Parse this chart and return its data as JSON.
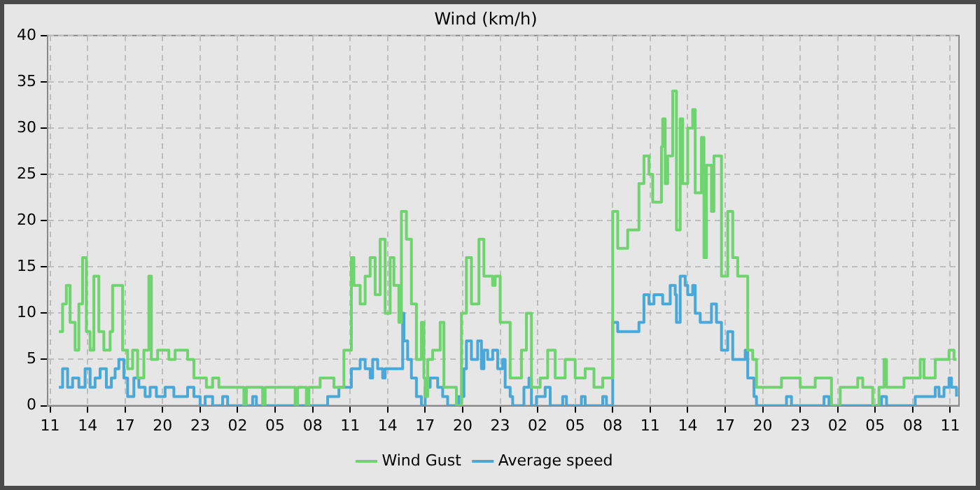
{
  "chart_data": {
    "type": "step",
    "title": "Wind (km/h)",
    "xlim": [
      "--01-01T10:48",
      "--01-04T11:42"
    ],
    "ylim": [
      0,
      40
    ],
    "xticks": [
      {
        "value": "--01-01T11:00",
        "label": "11"
      },
      {
        "value": "--01-01T14:00",
        "label": "14"
      },
      {
        "value": "--01-01T17:00",
        "label": "17"
      },
      {
        "value": "--01-01T20:00",
        "label": "20"
      },
      {
        "value": "--01-01T23:00",
        "label": "23"
      },
      {
        "value": "--01-02T02:00",
        "label": "02"
      },
      {
        "value": "--01-02T05:00",
        "label": "05"
      },
      {
        "value": "--01-02T08:00",
        "label": "08"
      },
      {
        "value": "--01-02T11:00",
        "label": "11"
      },
      {
        "value": "--01-02T14:00",
        "label": "14"
      },
      {
        "value": "--01-02T17:00",
        "label": "17"
      },
      {
        "value": "--01-02T20:00",
        "label": "20"
      },
      {
        "value": "--01-02T23:00",
        "label": "23"
      },
      {
        "value": "--01-03T02:00",
        "label": "02"
      },
      {
        "value": "--01-03T05:00",
        "label": "05"
      },
      {
        "value": "--01-03T08:00",
        "label": "08"
      },
      {
        "value": "--01-03T11:00",
        "label": "11"
      },
      {
        "value": "--01-03T14:00",
        "label": "14"
      },
      {
        "value": "--01-03T17:00",
        "label": "17"
      },
      {
        "value": "--01-03T20:00",
        "label": "20"
      },
      {
        "value": "--01-03T23:00",
        "label": "23"
      },
      {
        "value": "--01-04T02:00",
        "label": "02"
      },
      {
        "value": "--01-04T05:00",
        "label": "05"
      },
      {
        "value": "--01-04T08:00",
        "label": "08"
      },
      {
        "value": "--01-04T11:00",
        "label": "11"
      }
    ],
    "yticks": [
      0,
      5,
      10,
      15,
      20,
      25,
      30,
      35,
      40
    ],
    "grid": true,
    "legend": "bottom",
    "series": [
      {
        "name": "Wind Gust",
        "color": "#6fd46f",
        "x": [
          "--01-01T11:42",
          "--01-01T12:00",
          "--01-01T12:18",
          "--01-01T12:36",
          "--01-01T13:00",
          "--01-01T13:18",
          "--01-01T13:36",
          "--01-01T13:54",
          "--01-01T14:12",
          "--01-01T14:30",
          "--01-01T14:54",
          "--01-01T15:18",
          "--01-01T15:48",
          "--01-01T16:00",
          "--01-01T16:48",
          "--01-01T17:12",
          "--01-01T17:36",
          "--01-01T18:00",
          "--01-01T18:30",
          "--01-01T18:54",
          "--01-01T19:06",
          "--01-01T19:36",
          "--01-01T20:30",
          "--01-01T21:00",
          "--01-01T22:00",
          "--01-01T22:30",
          "--01-01T23:30",
          "--01-02T00:00",
          "--01-02T00:30",
          "--01-02T02:30",
          "--01-02T02:42",
          "--01-02T04:00",
          "--01-02T04:12",
          "--01-02T06:36",
          "--01-02T06:48",
          "--01-02T07:30",
          "--01-02T07:42",
          "--01-02T08:36",
          "--01-02T09:42",
          "--01-02T10:30",
          "--01-02T11:06",
          "--01-02T11:18",
          "--01-02T11:48",
          "--01-02T12:12",
          "--01-02T12:36",
          "--01-02T13:00",
          "--01-02T13:24",
          "--01-02T13:48",
          "--01-02T14:12",
          "--01-02T14:30",
          "--01-02T14:54",
          "--01-02T15:06",
          "--01-02T15:30",
          "--01-02T15:54",
          "--01-02T16:18",
          "--01-02T16:42",
          "--01-02T16:54",
          "--01-02T17:00",
          "--01-02T17:12",
          "--01-02T17:36",
          "--01-02T18:12",
          "--01-02T18:30",
          "--01-02T19:30",
          "--01-02T19:54",
          "--01-02T20:18",
          "--01-02T20:42",
          "--01-02T21:18",
          "--01-02T21:42",
          "--01-02T22:24",
          "--01-02T22:36",
          "--01-02T23:00",
          "--01-02T23:48",
          "--01-03T00:42",
          "--01-03T01:06",
          "--01-03T01:30",
          "--01-03T02:12",
          "--01-03T02:48",
          "--01-03T03:24",
          "--01-03T04:12",
          "--01-03T05:00",
          "--01-03T05:48",
          "--01-03T06:30",
          "--01-03T07:12",
          "--01-03T08:00",
          "--01-03T08:24",
          "--01-03T09:12",
          "--01-03T10:06",
          "--01-03T10:30",
          "--01-03T10:54",
          "--01-03T11:12",
          "--01-03T11:54",
          "--01-03T12:00",
          "--01-03T12:12",
          "--01-03T12:24",
          "--01-03T12:48",
          "--01-03T13:06",
          "--01-03T13:24",
          "--01-03T13:36",
          "--01-03T14:00",
          "--01-03T14:24",
          "--01-03T14:36",
          "--01-03T15:06",
          "--01-03T15:18",
          "--01-03T15:30",
          "--01-03T15:54",
          "--01-03T16:06",
          "--01-03T16:42",
          "--01-03T17:12",
          "--01-03T17:36",
          "--01-03T18:00",
          "--01-03T18:48",
          "--01-03T19:12",
          "--01-03T19:30",
          "--01-03T21:30",
          "--01-03T23:00",
          "--01-04T00:12",
          "--01-04T01:30",
          "--01-04T02:12",
          "--01-04T03:36",
          "--01-04T04:00",
          "--01-04T04:48",
          "--01-04T05:18",
          "--01-04T05:42",
          "--01-04T05:54",
          "--01-04T07:18",
          "--01-04T08:36",
          "--01-04T08:54",
          "--01-04T09:48",
          "--01-04T10:54",
          "--01-04T11:18",
          "--01-04T11:30"
        ],
        "values": [
          8,
          11,
          13,
          9,
          6,
          11,
          16,
          8,
          6,
          14,
          8,
          6,
          8,
          13,
          6,
          4,
          6,
          3,
          6,
          14,
          5,
          6,
          5,
          6,
          5,
          3,
          2,
          3,
          2,
          0,
          2,
          0,
          2,
          0,
          2,
          0,
          2,
          3,
          2,
          6,
          16,
          13,
          11,
          14,
          16,
          12,
          18,
          10,
          16,
          13,
          9,
          21,
          18,
          11,
          5,
          9,
          3,
          1,
          5,
          6,
          9,
          2,
          0,
          10,
          16,
          11,
          18,
          14,
          13,
          14,
          9,
          3,
          6,
          10,
          2,
          3,
          6,
          3,
          5,
          3,
          4,
          2,
          3,
          21,
          17,
          19,
          24,
          27,
          25,
          22,
          28,
          31,
          24,
          27,
          34,
          19,
          31,
          24,
          30,
          32,
          23,
          29,
          16,
          26,
          21,
          27,
          14,
          21,
          16,
          14,
          6,
          5,
          2,
          3,
          2,
          3,
          0,
          2,
          3,
          2,
          0,
          2,
          5,
          2,
          3,
          5,
          3,
          5,
          6,
          5,
          5
        ]
      },
      {
        "name": "Average speed",
        "color": "#4aa8d8",
        "x": [
          "--01-01T11:42",
          "--01-01T12:00",
          "--01-01T12:24",
          "--01-01T12:48",
          "--01-01T13:18",
          "--01-01T13:48",
          "--01-01T14:12",
          "--01-01T14:36",
          "--01-01T15:00",
          "--01-01T15:30",
          "--01-01T15:54",
          "--01-01T16:12",
          "--01-01T16:30",
          "--01-01T16:54",
          "--01-01T17:12",
          "--01-01T17:42",
          "--01-01T18:06",
          "--01-01T18:36",
          "--01-01T19:00",
          "--01-01T19:30",
          "--01-01T20:12",
          "--01-01T20:54",
          "--01-01T22:00",
          "--01-01T22:30",
          "--01-01T23:00",
          "--01-01T23:24",
          "--01-02T00:00",
          "--01-02T00:48",
          "--01-02T01:12",
          "--01-02T03:12",
          "--01-02T03:30",
          "--01-02T09:12",
          "--01-02T10:06",
          "--01-02T11:06",
          "--01-02T11:48",
          "--01-02T12:12",
          "--01-02T12:36",
          "--01-02T12:48",
          "--01-02T13:12",
          "--01-02T13:36",
          "--01-02T13:48",
          "--01-02T15:12",
          "--01-02T15:18",
          "--01-02T15:36",
          "--01-02T15:54",
          "--01-02T16:18",
          "--01-02T16:42",
          "--01-02T17:00",
          "--01-02T17:24",
          "--01-02T18:00",
          "--01-02T18:24",
          "--01-02T18:48",
          "--01-02T19:42",
          "--01-02T20:06",
          "--01-02T20:18",
          "--01-02T20:42",
          "--01-02T21:12",
          "--01-02T21:30",
          "--01-02T21:42",
          "--01-02T22:00",
          "--01-02T22:24",
          "--01-02T22:48",
          "--01-02T23:12",
          "--01-02T23:24",
          "--01-02T23:48",
          "--01-03T00:00",
          "--01-03T00:54",
          "--01-03T01:18",
          "--01-03T01:30",
          "--01-03T01:54",
          "--01-03T02:36",
          "--01-03T03:00",
          "--01-03T04:00",
          "--01-03T04:18",
          "--01-03T05:30",
          "--01-03T05:48",
          "--01-03T07:12",
          "--01-03T07:30",
          "--01-03T08:00",
          "--01-03T08:24",
          "--01-03T10:06",
          "--01-03T10:30",
          "--01-03T10:54",
          "--01-03T11:18",
          "--01-03T12:00",
          "--01-03T12:36",
          "--01-03T13:00",
          "--01-03T13:06",
          "--01-03T13:24",
          "--01-03T13:48",
          "--01-03T14:00",
          "--01-03T14:24",
          "--01-03T14:36",
          "--01-03T15:00",
          "--01-03T15:54",
          "--01-03T16:18",
          "--01-03T16:42",
          "--01-03T17:12",
          "--01-03T17:36",
          "--01-03T18:36",
          "--01-03T18:48",
          "--01-03T19:18",
          "--01-03T19:30",
          "--01-03T21:54",
          "--01-03T22:18",
          "--01-04T00:54",
          "--01-04T01:18",
          "--01-04T05:30",
          "--01-04T05:54",
          "--01-04T08:12",
          "--01-04T09:48",
          "--01-04T10:06",
          "--01-04T10:30",
          "--01-04T10:54",
          "--01-04T11:06",
          "--01-04T11:30"
        ],
        "values": [
          2,
          4,
          2,
          3,
          2,
          4,
          2,
          3,
          4,
          2,
          3,
          4,
          5,
          3,
          1,
          3,
          2,
          1,
          2,
          1,
          2,
          1,
          2,
          1,
          0,
          1,
          0,
          1,
          0,
          1,
          0,
          1,
          2,
          4,
          5,
          4,
          3,
          5,
          4,
          3,
          4,
          10,
          7,
          5,
          3,
          1,
          0,
          2,
          3,
          2,
          1,
          0,
          1,
          4,
          7,
          5,
          7,
          4,
          6,
          5,
          6,
          4,
          5,
          2,
          1,
          0,
          2,
          3,
          0,
          1,
          2,
          0,
          1,
          0,
          1,
          0,
          1,
          0,
          9,
          8,
          9,
          12,
          11,
          12,
          11,
          13,
          12,
          9,
          14,
          13,
          12,
          13,
          10,
          9,
          11,
          9,
          6,
          8,
          5,
          6,
          3,
          1,
          0,
          1,
          0,
          1,
          0,
          1,
          0,
          1,
          2,
          1,
          2,
          3,
          2,
          1
        ]
      }
    ]
  }
}
